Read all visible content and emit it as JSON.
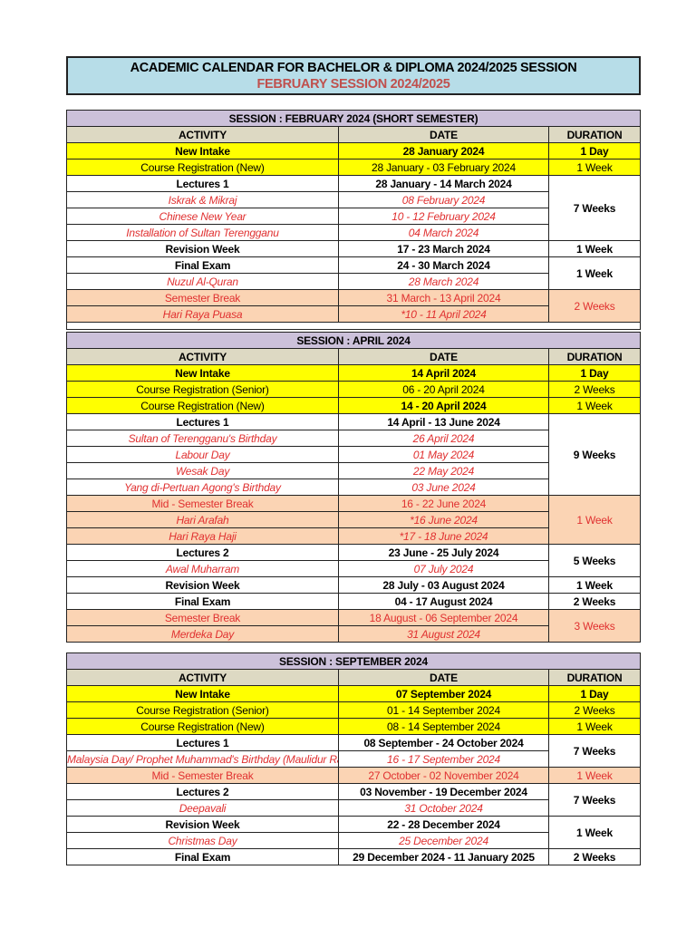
{
  "title": {
    "main": "ACADEMIC CALENDAR FOR BACHELOR & DIPLOMA 2024/2025 SESSION",
    "sub": "FEBRUARY SESSION  2024/2025"
  },
  "columns": {
    "activity": "ACTIVITY",
    "date": "DATE",
    "duration": "DURATION"
  },
  "colors": {
    "title_bg": "#b7dde8",
    "session_bg": "#ccc1da",
    "header_bg": "#ddd9c3",
    "registration_bg": "#ffff00",
    "break_bg": "#fbd4b4",
    "holiday_text": "#e03030"
  },
  "sessions": [
    {
      "title": "SESSION : FEBRUARY 2024 (SHORT SEMESTER)",
      "spacer": true,
      "rows": [
        {
          "activity": "New Intake",
          "date": "28 January 2024",
          "style": "yb",
          "duration": {
            "text": "1 Day",
            "span": 1,
            "style": ""
          }
        },
        {
          "activity": "Course Registration (New)",
          "date": "28 January - 03 February 2024",
          "style": "y",
          "duration": {
            "text": "1 Week",
            "span": 1,
            "style": ""
          }
        },
        {
          "activity": "Lectures 1",
          "date": "28 January - 14 March 2024",
          "style": "b",
          "duration": {
            "text": "7 Weeks",
            "span": 4,
            "style": "dur-b"
          }
        },
        {
          "activity": "Iskrak & Mikraj",
          "date": "08 February 2024",
          "style": "h"
        },
        {
          "activity": "Chinese New Year",
          "date": "10 - 12 February 2024",
          "style": "h"
        },
        {
          "activity": "Installation of Sultan Terengganu",
          "date": "04 March 2024",
          "style": "h"
        },
        {
          "activity": "Revision Week",
          "date": "17 - 23 March 2024",
          "style": "b",
          "duration": {
            "text": "1 Week",
            "span": 1,
            "style": "dur-b"
          }
        },
        {
          "activity": "Final Exam",
          "date": "24 - 30 March 2024",
          "style": "b",
          "duration": {
            "text": "1 Week",
            "span": 2,
            "style": "dur-b"
          }
        },
        {
          "activity": "Nuzul Al-Quran",
          "date": "28 March 2024",
          "style": "h"
        },
        {
          "activity": "Semester Break",
          "date": "31 March - 13 April 2024",
          "style": "br",
          "duration": {
            "text": "2 Weeks",
            "span": 2,
            "style": "dur-br"
          }
        },
        {
          "activity": "Hari Raya Puasa",
          "date": "*10 - 11 April 2024",
          "style": "bh"
        }
      ]
    },
    {
      "title": "SESSION : APRIL 2024",
      "rows": [
        {
          "activity": "New Intake",
          "date": "14 April 2024",
          "style": "yb",
          "duration": {
            "text": "1 Day",
            "span": 1,
            "style": ""
          }
        },
        {
          "activity": "Course Registration (Senior)",
          "date": "06 - 20 April 2024",
          "style": "y",
          "duration": {
            "text": "2 Weeks",
            "span": 1,
            "style": ""
          }
        },
        {
          "activity": "Course Registration (New)",
          "date": "14 - 20 April 2024",
          "style": "y",
          "date_bold": true,
          "duration": {
            "text": "1 Week",
            "span": 1,
            "style": ""
          }
        },
        {
          "activity": "Lectures 1",
          "date": "14 April - 13 June 2024",
          "style": "b",
          "duration": {
            "text": "9 Weeks",
            "span": 5,
            "style": "dur-b"
          }
        },
        {
          "activity": "Sultan of Terengganu's Birthday",
          "date": "26 April 2024",
          "style": "h"
        },
        {
          "activity": "Labour Day",
          "date": "01 May 2024",
          "style": "h"
        },
        {
          "activity": "Wesak Day",
          "date": "22 May 2024",
          "style": "h"
        },
        {
          "activity": "Yang di-Pertuan Agong's Birthday",
          "date": "03 June 2024",
          "style": "h"
        },
        {
          "activity": "Mid - Semester Break",
          "date": "16 - 22 June 2024",
          "style": "br",
          "duration": {
            "text": "1 Week",
            "span": 3,
            "style": "dur-br"
          }
        },
        {
          "activity": "Hari Arafah",
          "date": "*16 June 2024",
          "style": "bh"
        },
        {
          "activity": "Hari Raya Haji",
          "date": "*17 - 18 June 2024",
          "style": "bh"
        },
        {
          "activity": "Lectures 2",
          "date": "23 June - 25 July 2024",
          "style": "b",
          "duration": {
            "text": "5 Weeks",
            "span": 2,
            "style": "dur-b"
          }
        },
        {
          "activity": "Awal Muharram",
          "date": "07 July 2024",
          "style": "h"
        },
        {
          "activity": "Revision Week",
          "date": "28 July - 03 August 2024",
          "style": "b",
          "duration": {
            "text": "1 Week",
            "span": 1,
            "style": "dur-b"
          }
        },
        {
          "activity": "Final Exam",
          "date": "04 - 17 August  2024",
          "style": "b",
          "duration": {
            "text": "2 Weeks",
            "span": 1,
            "style": "dur-b"
          }
        },
        {
          "activity": "Semester Break",
          "date": "18 August - 06 September 2024",
          "style": "br",
          "duration": {
            "text": "3 Weeks",
            "span": 2,
            "style": "dur-br"
          }
        },
        {
          "activity": "Merdeka Day",
          "date": "31 August 2024",
          "style": "bh"
        }
      ]
    },
    {
      "title": "SESSION : SEPTEMBER 2024",
      "rows": [
        {
          "activity": "New Intake",
          "date": "07 September 2024",
          "style": "yb",
          "duration": {
            "text": "1 Day",
            "span": 1,
            "style": ""
          }
        },
        {
          "activity": "Course Registration (Senior)",
          "date": "01 - 14 September 2024",
          "style": "y",
          "duration": {
            "text": "2 Weeks",
            "span": 1,
            "style": ""
          }
        },
        {
          "activity": "Course Registration (New)",
          "date": "08 - 14 September 2024",
          "style": "y",
          "duration": {
            "text": "1 Week",
            "span": 1,
            "style": ""
          }
        },
        {
          "activity": "Lectures 1",
          "date": "08 September - 24 October 2024",
          "style": "b",
          "duration": {
            "text": "7 Weeks",
            "span": 2,
            "style": "dur-b"
          }
        },
        {
          "activity": "Malaysia Day/ Prophet Muhammad's Birthday (Maulidur Rasul)",
          "date": "16 - 17 September 2024",
          "style": "h",
          "activity_small": true
        },
        {
          "activity": "Mid - Semester Break",
          "date": "27 October - 02 November 2024",
          "style": "br",
          "duration": {
            "text": "1 Week",
            "span": 1,
            "style": "dur-br"
          }
        },
        {
          "activity": "Lectures 2",
          "date": "03 November - 19 December 2024",
          "style": "b",
          "duration": {
            "text": "7 Weeks",
            "span": 2,
            "style": "dur-b"
          }
        },
        {
          "activity": "Deepavali",
          "date": "31 October 2024",
          "style": "h"
        },
        {
          "activity": "Revision Week",
          "date": "22 - 28 December 2024",
          "style": "b",
          "duration": {
            "text": "1 Week",
            "span": 2,
            "style": "dur-b"
          }
        },
        {
          "activity": "Christmas Day",
          "date": "25 December 2024",
          "style": "h"
        },
        {
          "activity": "Final Exam",
          "date": "29 December 2024  - 11 January 2025",
          "style": "b",
          "duration": {
            "text": "2 Weeks",
            "span": 1,
            "style": "dur-b"
          }
        }
      ]
    }
  ]
}
